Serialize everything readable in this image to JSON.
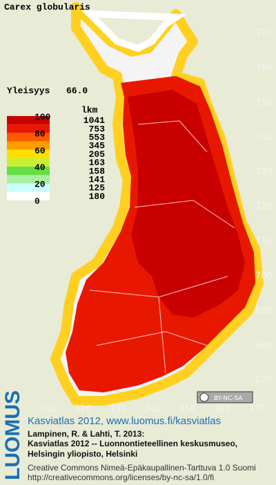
{
  "title": "Carex globularis",
  "frequency_label": "Yleisyys",
  "frequency_value": "66.0",
  "legend": {
    "header": "lkm",
    "ticks": [
      100,
      80,
      60,
      40,
      20,
      0
    ],
    "colors": [
      "#c80000",
      "#e81800",
      "#ff5a00",
      "#ff9c00",
      "#ffe000",
      "#c8f030",
      "#66dd44",
      "#a8f0a0",
      "#ccffff",
      "#ffffff"
    ],
    "counts": [
      1041,
      753,
      553,
      345,
      205,
      163,
      158,
      141,
      125,
      180
    ]
  },
  "yaxis": [
    770,
    760,
    750,
    740,
    730,
    720,
    710,
    700,
    690,
    680,
    670
  ],
  "xaxis": [
    310,
    320,
    330,
    340,
    350,
    360,
    370
  ],
  "license_badge": "BY-NC-SA",
  "logo": "LUOMUS",
  "credits": {
    "link": "Kasviatlas 2012, www.luomus.fi/kasviatlas",
    "lines": [
      "Lampinen, R. & Lahti, T. 2013:",
      "Kasviatlas 2012 -- Luonnontieteellinen keskusmuseo,",
      "Helsingin yliopisto, Helsinki"
    ],
    "license": "Creative Commons Nimeä-Epäkaupallinen-Tarttuva 1.0 Suomi",
    "url": "http://creativecommons.org/licenses/by-nc-sa/1.0/fi"
  }
}
